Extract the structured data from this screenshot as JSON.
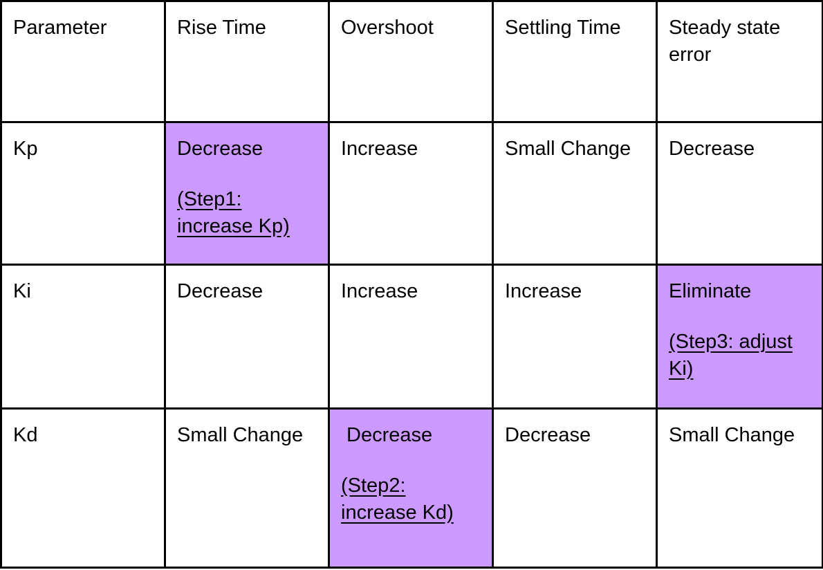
{
  "table": {
    "header": [
      "Parameter",
      "Rise Time",
      "Overshoot",
      "Settling Time",
      "Steady state error"
    ],
    "rows": [
      {
        "param": "Kp",
        "cells": [
          {
            "text": "Decrease",
            "note": "(Step1: increase Kp)",
            "highlight": true
          },
          {
            "text": "Increase",
            "note": "",
            "highlight": false
          },
          {
            "text": "Small Change",
            "note": "",
            "highlight": false
          },
          {
            "text": "Decrease",
            "note": "",
            "highlight": false
          }
        ]
      },
      {
        "param": "Ki",
        "cells": [
          {
            "text": "Decrease",
            "note": "",
            "highlight": false
          },
          {
            "text": "Increase",
            "note": "",
            "highlight": false
          },
          {
            "text": "Increase",
            "note": "",
            "highlight": false
          },
          {
            "text": "Eliminate",
            "note": "(Step3: adjust Ki)",
            "highlight": true
          }
        ]
      },
      {
        "param": "Kd",
        "cells": [
          {
            "text": "Small Change",
            "note": "",
            "highlight": false
          },
          {
            "text": " Decrease",
            "note": "(Step2: increase Kd)",
            "highlight": true
          },
          {
            "text": "Decrease",
            "note": "",
            "highlight": false
          },
          {
            "text": "Small Change",
            "note": "",
            "highlight": false
          }
        ]
      }
    ],
    "highlight_color": "#cc99ff"
  }
}
